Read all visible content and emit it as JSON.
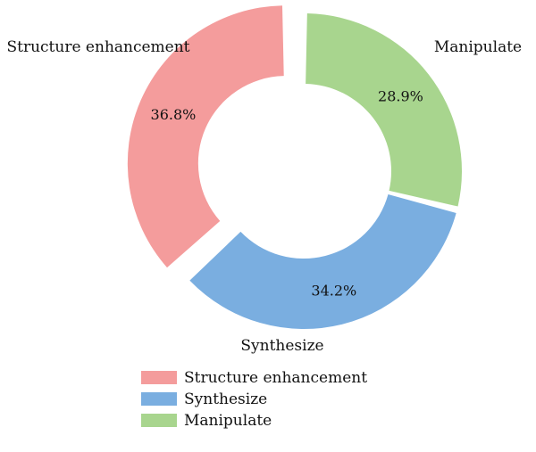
{
  "chart_data": {
    "type": "pie",
    "variant": "donut",
    "title": "",
    "slices": [
      {
        "label": "Manipulate",
        "value": 28.9,
        "display": "28.9%",
        "color": "#a8d58e"
      },
      {
        "label": "Synthesize",
        "value": 34.2,
        "display": "34.2%",
        "color": "#7aaee0"
      },
      {
        "label": "Structure enhancement",
        "value": 36.8,
        "display": "36.8%",
        "color": "#f49c9c",
        "exploded": true
      }
    ],
    "start_angle_deg": 0,
    "direction": "clockwise",
    "legend": {
      "position": "bottom",
      "entries": [
        {
          "label": "Structure enhancement",
          "color": "#f49c9c"
        },
        {
          "label": "Synthesize",
          "color": "#7aaee0"
        },
        {
          "label": "Manipulate",
          "color": "#a8d58e"
        }
      ]
    }
  }
}
